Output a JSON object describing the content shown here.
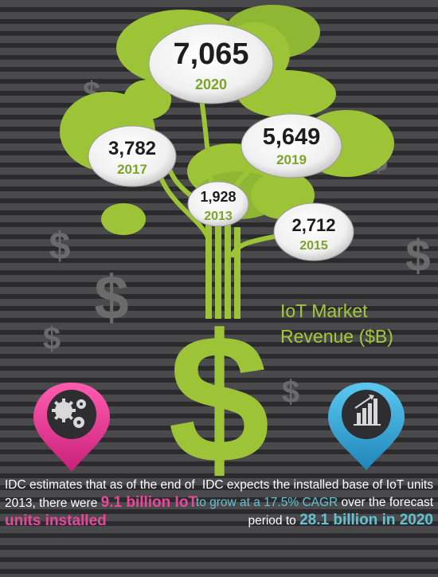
{
  "colors": {
    "green": "#9cc436",
    "dark_green": "#7ba428",
    "pink": "#e8479a",
    "blue": "#3aa8d6",
    "stripe_light": "#4a4a4c",
    "stripe_dark": "#2b2b2d"
  },
  "chart_data": {
    "type": "bubble-infographic",
    "title": [
      "IoT Market",
      "Revenue ($B)"
    ],
    "categories": [
      "2013",
      "2015",
      "2017",
      "2019",
      "2020"
    ],
    "values": [
      1928,
      2712,
      3782,
      5649,
      7065
    ],
    "labels": [
      "1,928",
      "2,712",
      "3,782",
      "5,649",
      "7,065"
    ]
  },
  "icons": {
    "left_pin": "gears-icon",
    "right_pin": "growth-chart-icon",
    "background": "dollar-sign-icon"
  },
  "left_text": {
    "part1": "IDC estimates that as of the end of 2013, there were",
    "highlight": "9.1 billion IoT units installed"
  },
  "right_text": {
    "part1": "IDC expects the installed base of IoT units",
    "highlight1": "to grow at a 17.5% CAGR",
    "part2": "over the forecast period to",
    "highlight2": "28.1 billion in 2020"
  }
}
